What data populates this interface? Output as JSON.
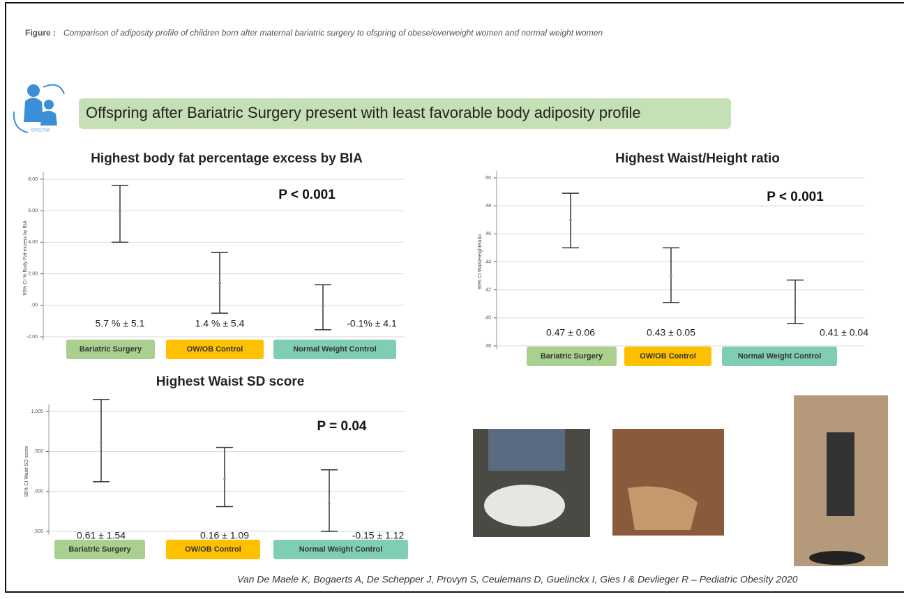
{
  "caption": {
    "label": "Figure :",
    "text": "Comparison of adiposity profile of children born after maternal bariatric surgery to ofspring of obese/overweight women and normal weight women"
  },
  "banner": "Offspring after Bariatric Surgery present with least favorable body adiposity profile",
  "logo_text": "EFFECTOR",
  "citation": "Van De Maele K, Bogaerts A, De Schepper J, Provyn S, Ceulemans D, Guelinckx I, Gies I & Devlieger R – Pediatric Obesity 2020",
  "chart_data": [
    {
      "type": "errorbar",
      "title": "Highest body fat percentage excess by BIA",
      "y_label": "95% CI % Body Fat excess by BIA",
      "annotation": "P < 0.001",
      "categories": [
        "Bariatric Surgery",
        "OW/OB Control",
        "Normal Weight Control"
      ],
      "category_colors": [
        "#a9d08e",
        "#ffc000",
        "#7fcdb5"
      ],
      "values": [
        5.7,
        1.4,
        -0.1
      ],
      "value_labels": [
        "5.7 % ± 5.1",
        "1.4 % ± 5.4",
        "-0.1% ± 4.1"
      ],
      "ci_low": [
        4.0,
        -0.5,
        -1.55
      ],
      "ci_high": [
        7.6,
        3.35,
        1.3
      ],
      "color": "#333333",
      "ylim": [
        -2,
        8
      ],
      "yticks": [
        {
          "value": -2,
          "label": "-2.00"
        },
        {
          "value": 0,
          "label": ".00"
        },
        {
          "value": 2,
          "label": "2.00"
        },
        {
          "value": 4,
          "label": "4.00"
        },
        {
          "value": 6,
          "label": "6.00"
        },
        {
          "value": 8,
          "label": "8.00"
        }
      ],
      "grid": true
    },
    {
      "type": "errorbar",
      "title": "Highest Waist/Height ratio",
      "y_label": "95% CI WaistHeightRatio",
      "annotation": "P < 0.001",
      "categories": [
        "Bariatric Surgery",
        "OW/OB Control",
        "Normal Weight Control"
      ],
      "category_colors": [
        "#a9d08e",
        "#ffc000",
        "#7fcdb5"
      ],
      "values": [
        0.47,
        0.43,
        0.41
      ],
      "value_labels": [
        "0.47 ± 0.06",
        "0.43 ± 0.05",
        "0.41 ± 0.04"
      ],
      "ci_low": [
        0.45,
        0.411,
        0.396
      ],
      "ci_high": [
        0.489,
        0.45,
        0.427
      ],
      "color": "#333333",
      "ylim": [
        0.38,
        0.5
      ],
      "yticks": [
        {
          "value": 0.38,
          "label": ".38"
        },
        {
          "value": 0.4,
          "label": ".40"
        },
        {
          "value": 0.42,
          "label": ".42"
        },
        {
          "value": 0.44,
          "label": ".44"
        },
        {
          "value": 0.46,
          "label": ".46"
        },
        {
          "value": 0.48,
          "label": ".48"
        },
        {
          "value": 0.5,
          "label": ".50"
        }
      ],
      "grid": true
    },
    {
      "type": "errorbar",
      "title": "Highest Waist SD score",
      "y_label": "95% CI Waist SD score",
      "annotation": "P = 0.04",
      "categories": [
        "Bariatric Surgery",
        "OW/OB Control",
        "Normal Weight Control"
      ],
      "category_colors": [
        "#a9d08e",
        "#ffc000",
        "#7fcdb5"
      ],
      "values": [
        0.61,
        0.16,
        -0.15
      ],
      "value_labels": [
        "0.61 ± 1.54",
        "0.16 ± 1.09",
        "-0.15 ± 1.12"
      ],
      "ci_low": [
        0.12,
        -0.19,
        -0.5
      ],
      "ci_high": [
        1.15,
        0.55,
        0.27
      ],
      "color": "#333333",
      "ylim": [
        -0.5,
        1
      ],
      "yticks": [
        {
          "value": -0.5,
          "label": "-.500"
        },
        {
          "value": 0,
          "label": ".000"
        },
        {
          "value": 0.5,
          "label": ".500"
        },
        {
          "value": 1,
          "label": "1.000"
        }
      ],
      "grid": true
    }
  ]
}
